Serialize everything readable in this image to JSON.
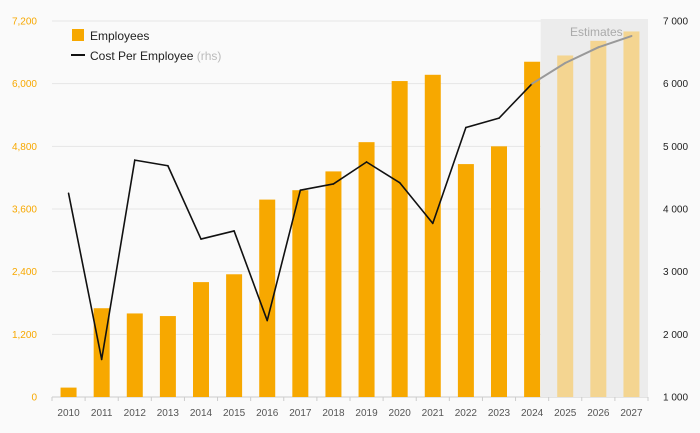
{
  "chart_data": {
    "type": "bar",
    "categories": [
      "2010",
      "2011",
      "2012",
      "2013",
      "2014",
      "2015",
      "2016",
      "2017",
      "2018",
      "2019",
      "2020",
      "2021",
      "2022",
      "2023",
      "2024",
      "2025",
      "2026",
      "2027"
    ],
    "series": [
      {
        "name": "Employees",
        "type": "bar",
        "axis": "left",
        "values": [
          180,
          1700,
          1600,
          1550,
          2200,
          2350,
          3780,
          3960,
          4320,
          4880,
          6050,
          6170,
          4460,
          4800,
          6420,
          6540,
          6820,
          7000
        ]
      },
      {
        "name": "Cost Per Employee",
        "name_suffix": "(rhs)",
        "type": "line",
        "axis": "right",
        "values": [
          4250,
          1600,
          4780,
          4690,
          3520,
          3650,
          2220,
          4300,
          4400,
          4750,
          4420,
          3770,
          5300,
          5450,
          6000,
          6330,
          6580,
          6760
        ]
      }
    ],
    "estimates": {
      "label": "Estimates",
      "categories": [
        "2025",
        "2026",
        "2027"
      ]
    },
    "y_left": {
      "range": [
        0,
        7200
      ],
      "ticks": [
        "0",
        "1,200",
        "2,400",
        "3,600",
        "4,800",
        "6,000",
        "7,200"
      ],
      "values": [
        0,
        1200,
        2400,
        3600,
        4800,
        6000,
        7200
      ]
    },
    "y_right": {
      "range": [
        1000,
        7000
      ],
      "ticks": [
        "1 000",
        "2 000",
        "3 000",
        "4 000",
        "5 000",
        "6 000",
        "7 000"
      ],
      "values": [
        1000,
        2000,
        3000,
        4000,
        5000,
        6000,
        7000
      ]
    },
    "grid": true,
    "legend": "top-left",
    "colors": {
      "bar": "#f7a800",
      "bar_estimate": "#f4d591",
      "line": "#111111",
      "line_estimate": "#999999",
      "estimate_band": "#ececec"
    }
  }
}
